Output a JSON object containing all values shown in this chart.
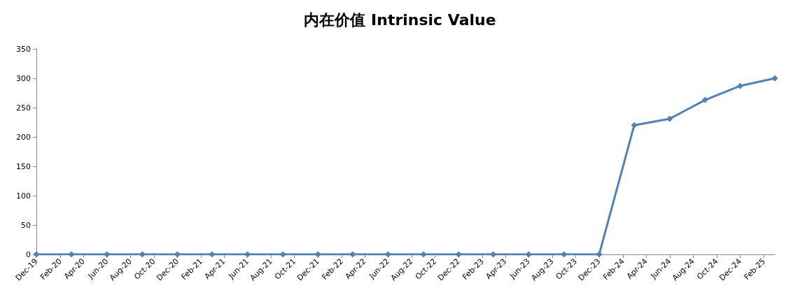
{
  "chart_data": {
    "type": "line",
    "title": "内在价值 Intrinsic Value",
    "x": [
      "2019-12",
      "2020-03",
      "2020-06",
      "2020-09",
      "2020-12",
      "2021-03",
      "2021-06",
      "2021-09",
      "2021-12",
      "2022-03",
      "2022-06",
      "2022-09",
      "2022-12",
      "2023-03",
      "2023-06",
      "2023-09",
      "2023-12",
      "2024-03",
      "2024-06",
      "2024-09",
      "2024-12",
      "2025-03"
    ],
    "series": [
      {
        "color": "#4f81bd",
        "values": [
          0,
          0,
          0,
          0,
          0,
          0,
          0,
          0,
          0,
          0,
          0,
          0,
          0,
          0,
          0,
          0,
          0,
          220,
          231,
          263,
          287,
          300
        ]
      }
    ],
    "xlim": [
      "2019-12",
      "2025-03"
    ],
    "xticks": [
      {
        "value": "2019-12",
        "label": "Dec-19"
      },
      {
        "value": "2020-02",
        "label": "Feb-20"
      },
      {
        "value": "2020-04",
        "label": "Apr-20"
      },
      {
        "value": "2020-06",
        "label": "Jun-20"
      },
      {
        "value": "2020-08",
        "label": "Aug-20"
      },
      {
        "value": "2020-10",
        "label": "Oct-20"
      },
      {
        "value": "2020-12",
        "label": "Dec-20"
      },
      {
        "value": "2021-02",
        "label": "Feb-21"
      },
      {
        "value": "2021-04",
        "label": "Apr-21"
      },
      {
        "value": "2021-06",
        "label": "Jun-21"
      },
      {
        "value": "2021-08",
        "label": "Aug-21"
      },
      {
        "value": "2021-10",
        "label": "Oct-21"
      },
      {
        "value": "2021-12",
        "label": "Dec-21"
      },
      {
        "value": "2022-02",
        "label": "Feb-22"
      },
      {
        "value": "2022-04",
        "label": "Apr-22"
      },
      {
        "value": "2022-06",
        "label": "Jun-22"
      },
      {
        "value": "2022-08",
        "label": "Aug-22"
      },
      {
        "value": "2022-10",
        "label": "Oct-22"
      },
      {
        "value": "2022-12",
        "label": "Dec-22"
      },
      {
        "value": "2023-02",
        "label": "Feb-23"
      },
      {
        "value": "2023-04",
        "label": "Apr-23"
      },
      {
        "value": "2023-06",
        "label": "Jun-23"
      },
      {
        "value": "2023-08",
        "label": "Aug-23"
      },
      {
        "value": "2023-10",
        "label": "Oct-23"
      },
      {
        "value": "2023-12",
        "label": "Dec-23"
      },
      {
        "value": "2024-02",
        "label": "Feb-24"
      },
      {
        "value": "2024-04",
        "label": "Apr-24"
      },
      {
        "value": "2024-06",
        "label": "Jun-24"
      },
      {
        "value": "2024-08",
        "label": "Aug-24"
      },
      {
        "value": "2024-10",
        "label": "Oct-24"
      },
      {
        "value": "2024-12",
        "label": "Dec-24"
      },
      {
        "value": "2025-02",
        "label": "Feb-25"
      }
    ],
    "ylim": [
      0,
      350
    ],
    "yticks": [
      0,
      50,
      100,
      150,
      200,
      250,
      300,
      350
    ],
    "grid": false,
    "marker": "diamond",
    "line_style": "solid"
  }
}
